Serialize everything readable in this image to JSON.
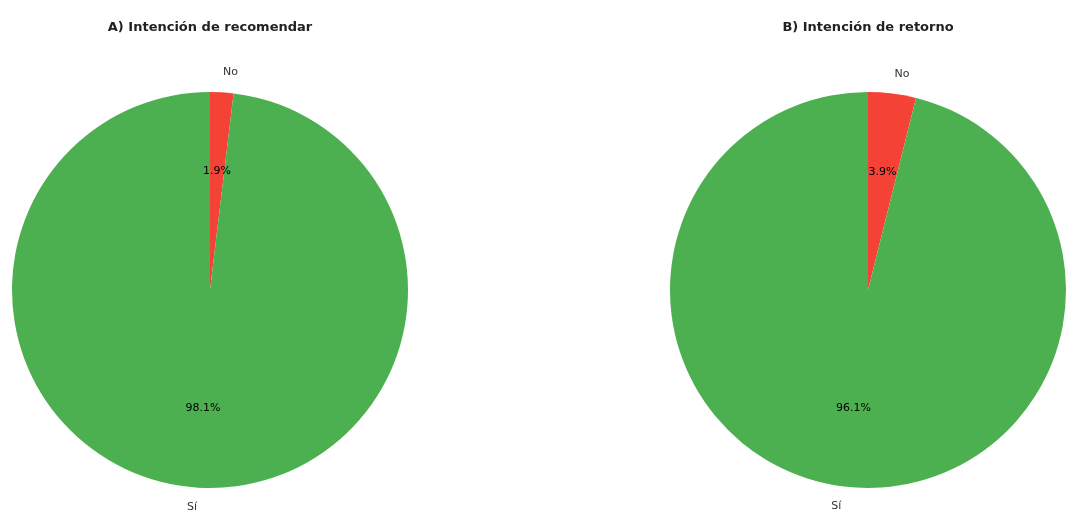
{
  "chart_data": [
    {
      "type": "pie",
      "title": "A) Intención de recomendar",
      "categories": [
        "No",
        "Sí"
      ],
      "values": [
        1.9,
        98.1
      ],
      "colors": [
        "#f44336",
        "#4caf50"
      ],
      "value_labels": [
        "1.9%",
        "98.1%"
      ]
    },
    {
      "type": "pie",
      "title": "B) Intención de retorno",
      "categories": [
        "No",
        "Sí"
      ],
      "values": [
        3.9,
        96.1
      ],
      "colors": [
        "#f44336",
        "#4caf50"
      ],
      "value_labels": [
        "3.9%",
        "96.1%"
      ]
    }
  ]
}
